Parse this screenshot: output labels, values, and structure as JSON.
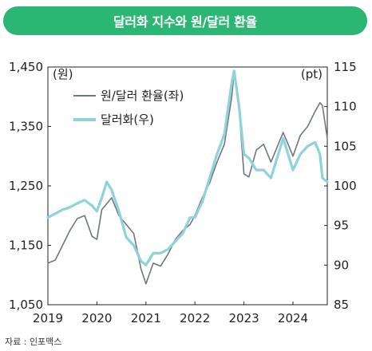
{
  "header": {
    "title": "달러화 지수와 원/달러 환율"
  },
  "source": "자료 : 인포맥스",
  "colors": {
    "header_bg": "#2bb673",
    "krw_line": "#6e7780",
    "dxy_line": "#8fd3d6",
    "text": "#222222"
  },
  "chart_data": {
    "type": "line",
    "title": "달러화 지수와 원/달러 환율",
    "x_tick_labels": [
      "2019",
      "2020",
      "2021",
      "2022",
      "2023",
      "2024"
    ],
    "x_range": [
      2019.0,
      2024.7
    ],
    "left_axis": {
      "unit": "(원)",
      "ticks": [
        1050,
        1150,
        1250,
        1350,
        1450
      ],
      "tick_labels": [
        "1,050",
        "1,150",
        "1,250",
        "1,350",
        "1,450"
      ],
      "range": [
        1050,
        1450
      ]
    },
    "right_axis": {
      "unit": "(pt)",
      "ticks": [
        85,
        90,
        95,
        100,
        105,
        110,
        115
      ],
      "tick_labels": [
        "85",
        "90",
        "95",
        "100",
        "105",
        "110",
        "115"
      ],
      "range": [
        85,
        115
      ]
    },
    "series": [
      {
        "name": "원/달러 환율(좌)",
        "axis": "left",
        "color": "#6e7780",
        "x": [
          2019.0,
          2019.15,
          2019.3,
          2019.45,
          2019.6,
          2019.75,
          2019.9,
          2020.0,
          2020.1,
          2020.2,
          2020.3,
          2020.45,
          2020.6,
          2020.75,
          2020.9,
          2021.0,
          2021.15,
          2021.3,
          2021.45,
          2021.6,
          2021.75,
          2021.9,
          2022.0,
          2022.15,
          2022.3,
          2022.45,
          2022.6,
          2022.75,
          2022.8,
          2022.9,
          2023.0,
          2023.1,
          2023.25,
          2023.4,
          2023.55,
          2023.7,
          2023.8,
          2023.9,
          2024.0,
          2024.15,
          2024.3,
          2024.45,
          2024.55,
          2024.6,
          2024.7
        ],
        "values": [
          1120,
          1125,
          1150,
          1175,
          1195,
          1200,
          1165,
          1160,
          1210,
          1220,
          1230,
          1200,
          1185,
          1170,
          1110,
          1085,
          1120,
          1115,
          1135,
          1160,
          1175,
          1185,
          1200,
          1230,
          1255,
          1290,
          1320,
          1400,
          1440,
          1380,
          1270,
          1265,
          1310,
          1320,
          1290,
          1320,
          1340,
          1320,
          1300,
          1335,
          1350,
          1375,
          1390,
          1385,
          1330
        ]
      },
      {
        "name": "달러화(우)",
        "axis": "right",
        "color": "#8fd3d6",
        "x": [
          2019.0,
          2019.15,
          2019.3,
          2019.45,
          2019.6,
          2019.75,
          2019.9,
          2020.0,
          2020.1,
          2020.2,
          2020.3,
          2020.45,
          2020.6,
          2020.75,
          2020.9,
          2021.0,
          2021.15,
          2021.3,
          2021.45,
          2021.6,
          2021.75,
          2021.9,
          2022.0,
          2022.15,
          2022.3,
          2022.45,
          2022.6,
          2022.75,
          2022.8,
          2022.9,
          2023.0,
          2023.1,
          2023.25,
          2023.4,
          2023.55,
          2023.7,
          2023.8,
          2023.9,
          2024.0,
          2024.15,
          2024.3,
          2024.45,
          2024.55,
          2024.6,
          2024.7
        ],
        "values": [
          96,
          96.5,
          97,
          97.3,
          97.8,
          98.2,
          97.5,
          96.8,
          98.5,
          100.5,
          99.5,
          96.8,
          93.5,
          92.5,
          90.5,
          90,
          91.5,
          91.5,
          92,
          93,
          94,
          96,
          96,
          98,
          101,
          104,
          106.5,
          113,
          114.5,
          110,
          104,
          103.5,
          102,
          102,
          101,
          104,
          106,
          104,
          102,
          104,
          105,
          105.5,
          104,
          101,
          100.5
        ]
      }
    ],
    "grid": false,
    "legend_position": "top-left"
  }
}
